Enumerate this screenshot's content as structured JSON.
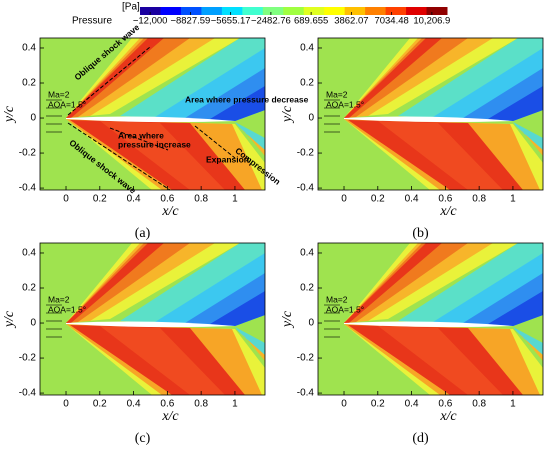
{
  "colorbar": {
    "unit": "[Pa]",
    "label": "Pressure",
    "clim": [
      -12800,
      11400
    ],
    "ticks": [
      {
        "value": -12000,
        "label": "−12,000"
      },
      {
        "value": -8827.59,
        "label": "−8827.59"
      },
      {
        "value": -5655.17,
        "label": "−5655.17"
      },
      {
        "value": -2482.76,
        "label": "−2482.76"
      },
      689.655,
      3862.07,
      7034.48,
      {
        "value": 10206.9,
        "label": "10,206.9"
      }
    ]
  },
  "chart_data": [
    {
      "type": "contour",
      "panel_label": "(a)",
      "xlabel": "x/c",
      "ylabel": "y/c",
      "xlim": [
        -0.154,
        1.178
      ],
      "ylim": [
        -0.411,
        0.457
      ],
      "xticks": [
        0,
        0.2,
        0.4,
        0.6,
        0.8,
        1
      ],
      "yticks": [
        -0.4,
        -0.2,
        0,
        0.2,
        0.4
      ],
      "annotations": [
        "Ma=2",
        "AOA=1.5°",
        "Oblique shock wave",
        "Area where pressure decrease",
        "Area where",
        "pressure increase",
        "Expansion",
        "Compression",
        "Oblique shock wave"
      ]
    },
    {
      "type": "contour",
      "panel_label": "(b)",
      "xlabel": "x/c",
      "ylabel": "y/c",
      "xlim": [
        -0.154,
        1.178
      ],
      "ylim": [
        -0.411,
        0.457
      ],
      "xticks": [
        0,
        0.2,
        0.4,
        0.6,
        0.8,
        1
      ],
      "yticks": [
        -0.4,
        -0.2,
        0,
        0.2,
        0.4
      ],
      "annotations": [
        "Ma=2",
        "AOA=1.5°"
      ]
    },
    {
      "type": "contour",
      "panel_label": "(c)",
      "xlabel": "x/c",
      "ylabel": "y/c",
      "xlim": [
        -0.154,
        1.178
      ],
      "ylim": [
        -0.411,
        0.457
      ],
      "xticks": [
        0,
        0.2,
        0.4,
        0.6,
        0.8,
        1
      ],
      "yticks": [
        -0.4,
        -0.2,
        0,
        0.2,
        0.4
      ],
      "annotations": [
        "Ma=2",
        "AOA=1.5°"
      ]
    },
    {
      "type": "contour",
      "panel_label": "(d)",
      "xlabel": "x/c",
      "ylabel": "y/c",
      "xlim": [
        -0.154,
        1.178
      ],
      "ylim": [
        -0.411,
        0.457
      ],
      "xticks": [
        0,
        0.2,
        0.4,
        0.6,
        0.8,
        1
      ],
      "yticks": [
        -0.4,
        -0.2,
        0,
        0.2,
        0.4
      ],
      "annotations": [
        "Ma=2",
        "AOA=1.5°"
      ]
    }
  ]
}
